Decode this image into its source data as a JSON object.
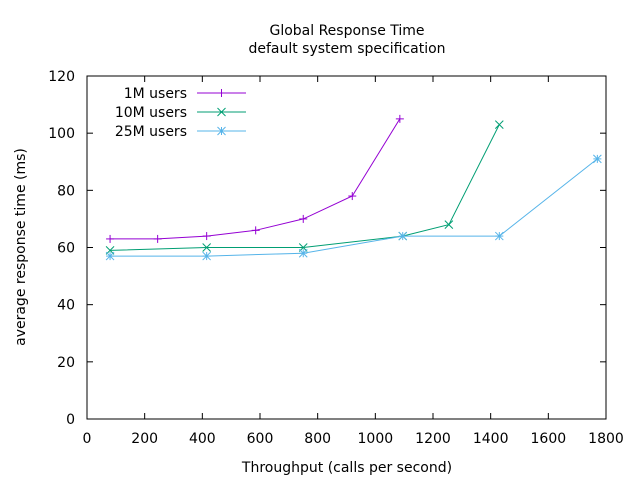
{
  "chart_data": {
    "type": "line",
    "title": "Global Response Time",
    "subtitle": "default system specification",
    "xlabel": "Throughput (calls per second)",
    "ylabel": "average response time (ms)",
    "xlim": [
      0,
      1800
    ],
    "ylim": [
      0,
      120
    ],
    "xticks": [
      0,
      200,
      400,
      600,
      800,
      1000,
      1200,
      1400,
      1600,
      1800
    ],
    "yticks": [
      0,
      20,
      40,
      60,
      80,
      100,
      120
    ],
    "grid": false,
    "legend_position": "top-left",
    "series": [
      {
        "name": "1M users",
        "color": "#9400d3",
        "marker": "plus",
        "x": [
          80,
          245,
          415,
          585,
          750,
          920,
          1085
        ],
        "y": [
          63,
          63,
          64,
          66,
          70,
          78,
          105
        ]
      },
      {
        "name": "10M users",
        "color": "#009e73",
        "marker": "cross",
        "x": [
          80,
          415,
          750,
          1095,
          1255,
          1430
        ],
        "y": [
          59,
          60,
          60,
          64,
          68,
          103
        ]
      },
      {
        "name": "25M users",
        "color": "#56b4e9",
        "marker": "star",
        "x": [
          80,
          415,
          750,
          1095,
          1430,
          1770
        ],
        "y": [
          57,
          57,
          58,
          64,
          64,
          91
        ]
      }
    ]
  }
}
